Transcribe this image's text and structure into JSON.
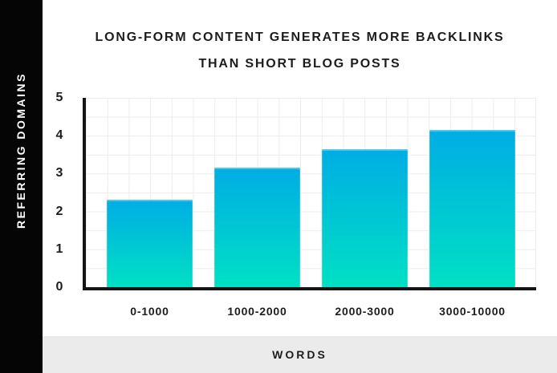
{
  "title": {
    "line1": "LONG-FORM CONTENT GENERATES MORE BACKLINKS",
    "line2": "THAN SHORT BLOG POSTS"
  },
  "chart_data": {
    "type": "bar",
    "title": "LONG-FORM CONTENT GENERATES MORE BACKLINKS THAN SHORT BLOG POSTS",
    "categories": [
      "0-1000",
      "1000-2000",
      "2000-3000",
      "3000-10000"
    ],
    "values": [
      2.3,
      3.15,
      3.65,
      4.15
    ],
    "xlabel": "WORDS",
    "ylabel": "REFERRING DOMAINS",
    "ylim": [
      0,
      5
    ],
    "yticks": [
      0,
      1,
      2,
      3,
      4,
      5
    ],
    "grid": true,
    "legend": "none",
    "colors": {
      "bar_gradient_top": "#00ade4",
      "bar_gradient_bottom": "#00e0c4",
      "axis": "#141414",
      "grid": "#ececec",
      "text": "#1d1d1d",
      "left_band_bg": "#050505",
      "left_band_text": "#ffffff",
      "bottom_band_bg": "#ebebeb",
      "background": "#ffffff"
    }
  }
}
